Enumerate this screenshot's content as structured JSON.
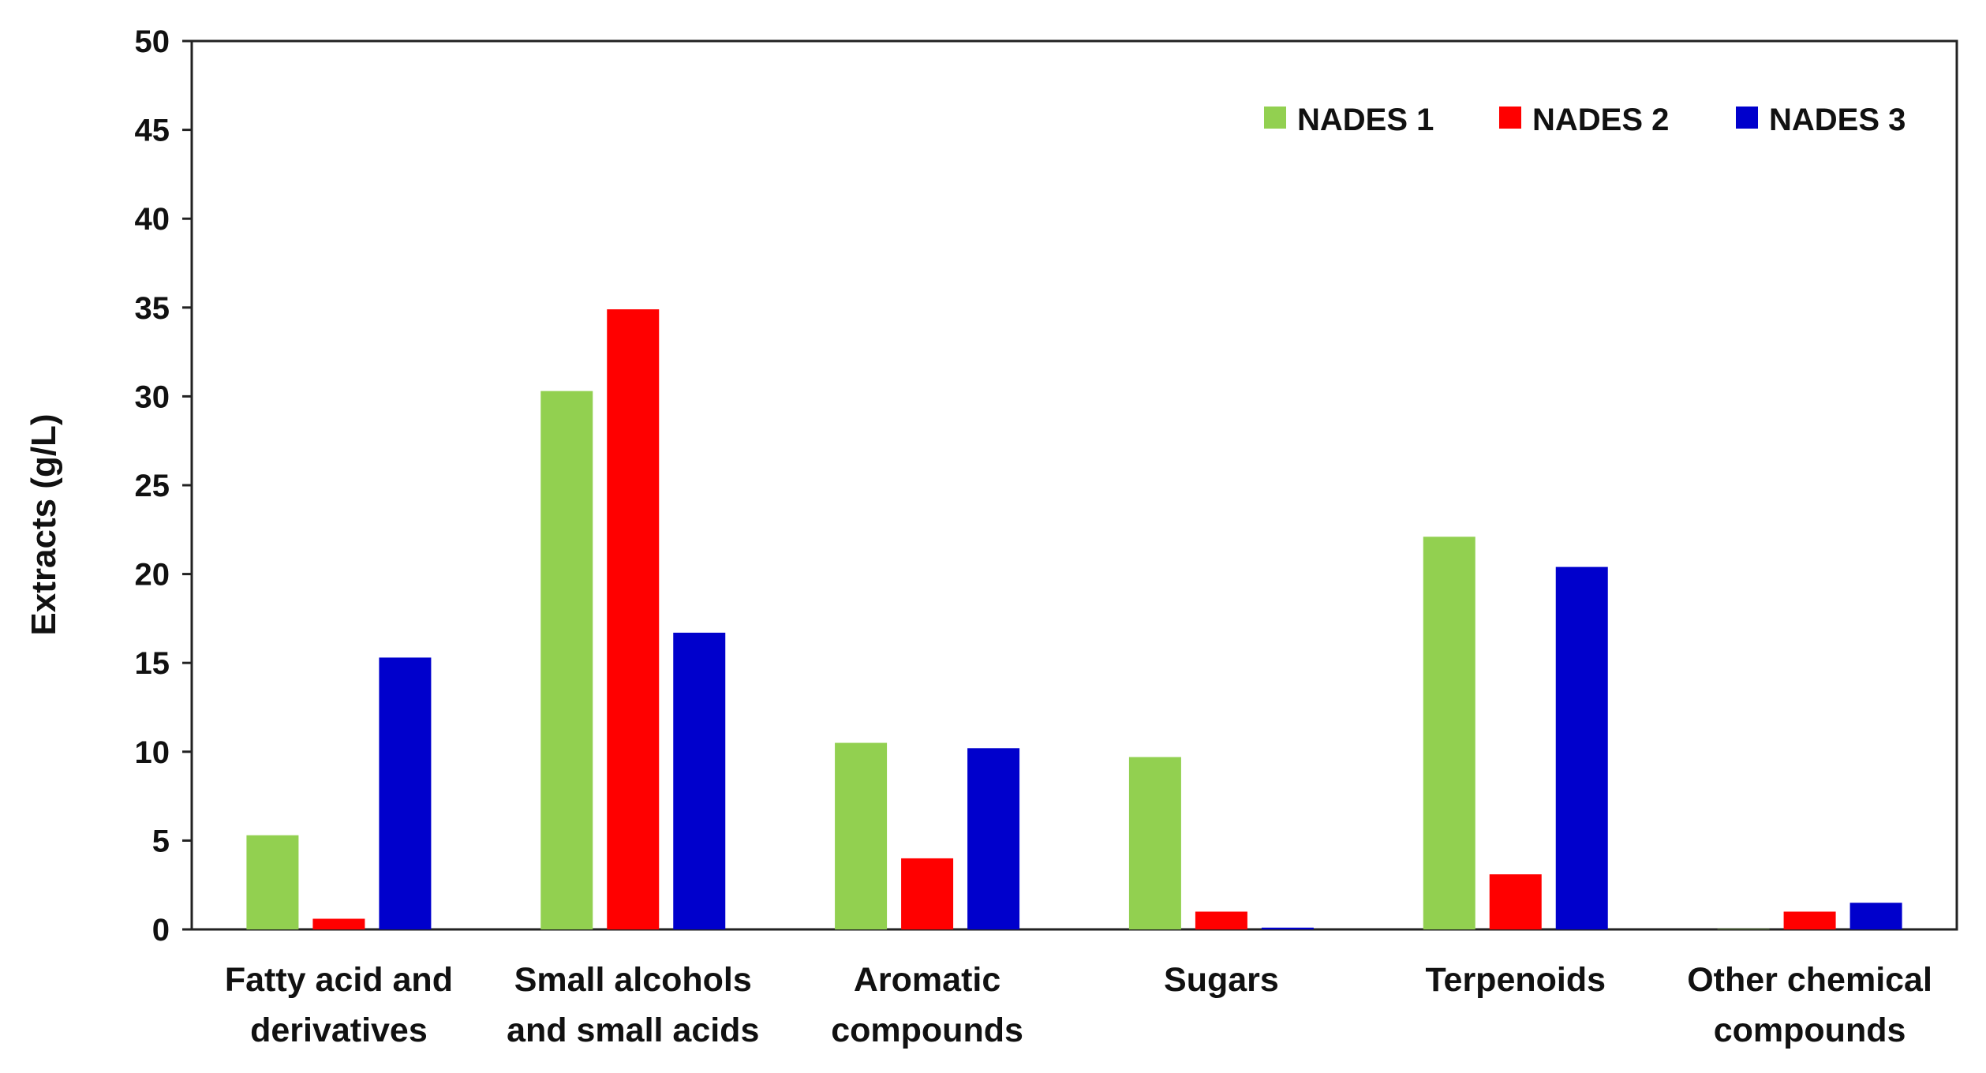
{
  "chart_data": {
    "type": "bar",
    "title": "",
    "xlabel": "",
    "ylabel": "Extracts (g/L)",
    "ylim": [
      0,
      50
    ],
    "yticks": [
      0,
      5,
      10,
      15,
      20,
      25,
      30,
      35,
      40,
      45,
      50
    ],
    "grid": false,
    "legend_position": "top-right",
    "categories": [
      [
        "Fatty acid and",
        "derivatives"
      ],
      [
        "Small alcohols",
        "and small acids"
      ],
      [
        "Aromatic",
        "compounds"
      ],
      [
        "Sugars"
      ],
      [
        "Terpenoids"
      ],
      [
        "Other chemical",
        "compounds"
      ]
    ],
    "series": [
      {
        "name": "NADES 1",
        "color": "#92d050",
        "values": [
          5.3,
          30.3,
          10.5,
          9.7,
          22.1,
          0.0
        ]
      },
      {
        "name": "NADES 2",
        "color": "#ff0000",
        "values": [
          0.6,
          34.9,
          4.0,
          1.0,
          3.1,
          1.0
        ]
      },
      {
        "name": "NADES 3",
        "color": "#0000cc",
        "values": [
          15.3,
          16.7,
          10.2,
          0.1,
          20.4,
          1.5
        ]
      }
    ]
  }
}
